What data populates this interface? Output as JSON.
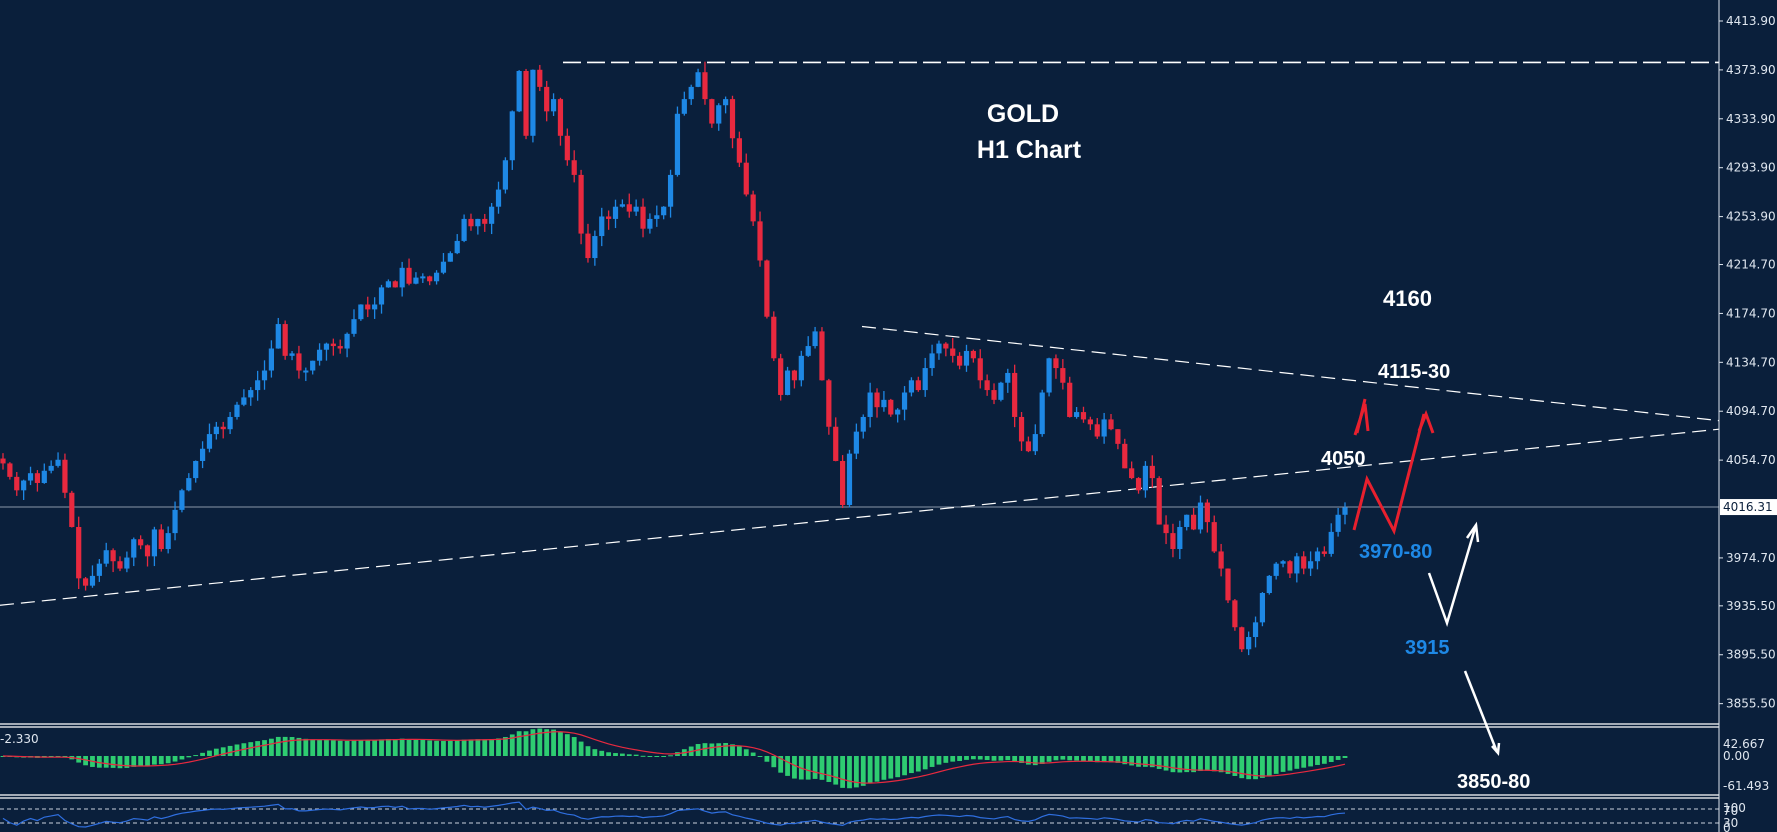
{
  "chart_data": {
    "type": "candlestick",
    "title": "GOLD",
    "subtitle": "H1 Chart",
    "symbol": "GOLD",
    "timeframe": "H1",
    "current_price": "4016.31",
    "price_axis_ticks": [
      "4413.90",
      "4373.90",
      "4333.90",
      "4293.90",
      "4253.90",
      "4214.70",
      "4174.70",
      "4134.70",
      "4094.70",
      "4054.70",
      "3974.70",
      "3935.50",
      "3895.50",
      "3855.50"
    ],
    "ylim": [
      3840,
      4425
    ],
    "closes": [
      4052,
      4041,
      4030,
      4038,
      4044,
      4036,
      4046,
      4050,
      4055,
      4028,
      4000,
      3958,
      3952,
      3960,
      3970,
      3981,
      3972,
      3966,
      3975,
      3990,
      3985,
      3976,
      3998,
      3982,
      3995,
      4014,
      4030,
      4040,
      4054,
      4064,
      4076,
      4082,
      4080,
      4090,
      4100,
      4106,
      4112,
      4120,
      4128,
      4146,
      4166,
      4140,
      4142,
      4128,
      4128,
      4136,
      4145,
      4150,
      4148,
      4146,
      4158,
      4170,
      4182,
      4178,
      4182,
      4196,
      4201,
      4196,
      4212,
      4199,
      4204,
      4205,
      4201,
      4208,
      4217,
      4224,
      4234,
      4252,
      4246,
      4252,
      4248,
      4262,
      4276,
      4300,
      4340,
      4373,
      4320,
      4374,
      4360,
      4340,
      4350,
      4320,
      4300,
      4288,
      4240,
      4220,
      4238,
      4254,
      4252,
      4262,
      4264,
      4258,
      4262,
      4244,
      4252,
      4255,
      4262,
      4288,
      4338,
      4350,
      4360,
      4372,
      4350,
      4330,
      4345,
      4350,
      4318,
      4298,
      4272,
      4250,
      4218,
      4172,
      4138,
      4108,
      4128,
      4120,
      4140,
      4148,
      4160,
      4120,
      4082,
      4054,
      4018,
      4060,
      4078,
      4090,
      4110,
      4098,
      4104,
      4092,
      4096,
      4110,
      4120,
      4112,
      4130,
      4142,
      4150,
      4146,
      4140,
      4132,
      4144,
      4138,
      4120,
      4112,
      4104,
      4118,
      4126,
      4090,
      4070,
      4062,
      4076,
      4110,
      4138,
      4130,
      4118,
      4090,
      4094,
      4088,
      4084,
      4074,
      4088,
      4080,
      4068,
      4048,
      4040,
      4030,
      4050,
      4040,
      4002,
      3995,
      3982,
      4000,
      4010,
      3998,
      4020,
      4004,
      3980,
      3966,
      3940,
      3918,
      3900,
      3910,
      3922,
      3946,
      3960,
      3970,
      3972,
      3962,
      3976,
      3966,
      3972,
      3980,
      3978,
      3996,
      4010,
      4016
    ],
    "horizontal_lines": [
      {
        "price": 4380,
        "style": "dashed",
        "label": "resistance-top"
      },
      {
        "price": 4016.31,
        "style": "solid",
        "label": "current-price"
      }
    ],
    "trendlines": [
      {
        "name": "lower-rising",
        "from": [
          0,
          3936
        ],
        "to": [
          1719,
          4080
        ]
      },
      {
        "name": "upper-falling",
        "from": [
          862,
          4164
        ],
        "to": [
          1719,
          4087
        ]
      }
    ],
    "annotations": [
      {
        "text": "4160",
        "color": "#ffffff"
      },
      {
        "text": "4115-30",
        "color": "#ffffff"
      },
      {
        "text": "4050",
        "color": "#ffffff"
      },
      {
        "text": "3970-80",
        "color": "#1e88e5"
      },
      {
        "text": "3915",
        "color": "#1e88e5"
      },
      {
        "text": "3850-80",
        "color": "#ffffff"
      }
    ],
    "macd": {
      "label": "-2.330",
      "ticks": [
        "42.667",
        "0.00",
        "-61.493"
      ]
    },
    "rsi": {
      "ticks": [
        "100",
        "70",
        "30",
        "0"
      ]
    }
  },
  "colors": {
    "background": "#0a1f3b",
    "bull": "#1e88e5",
    "bear": "#e8293f",
    "macd_hist": "#2ecc71",
    "macd_signal": "#e8293f",
    "rsi_line": "#2f6fe0",
    "axis": "#dfe6ef"
  }
}
